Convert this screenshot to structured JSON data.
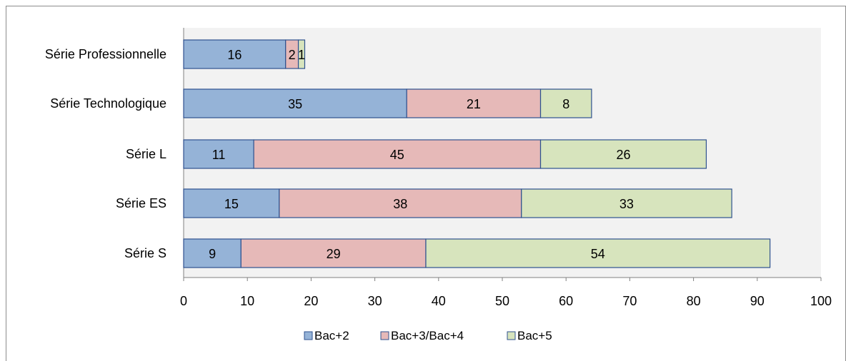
{
  "chart_data": {
    "type": "bar",
    "orientation": "horizontal",
    "stacked": true,
    "categories": [
      "Série Professionnelle",
      "Série Technologique",
      "Série L",
      "Série ES",
      "Série S"
    ],
    "series": [
      {
        "name": "Bac+2",
        "values": [
          16,
          35,
          11,
          15,
          9
        ],
        "color": "#95b3d7",
        "border": "#2f528f"
      },
      {
        "name": "Bac+3/Bac+4",
        "values": [
          2,
          21,
          45,
          38,
          29
        ],
        "color": "#e6b9b8",
        "border": "#2f528f"
      },
      {
        "name": "Bac+5",
        "values": [
          1,
          8,
          26,
          33,
          54
        ],
        "color": "#d7e4bd",
        "border": "#2f528f"
      }
    ],
    "xlim": [
      0,
      100
    ],
    "x_ticks": [
      0,
      10,
      20,
      30,
      40,
      50,
      60,
      70,
      80,
      90,
      100
    ],
    "plot_background": "#f2f2f2",
    "axis_color": "#808080",
    "legend_position": "bottom",
    "grid": false
  }
}
